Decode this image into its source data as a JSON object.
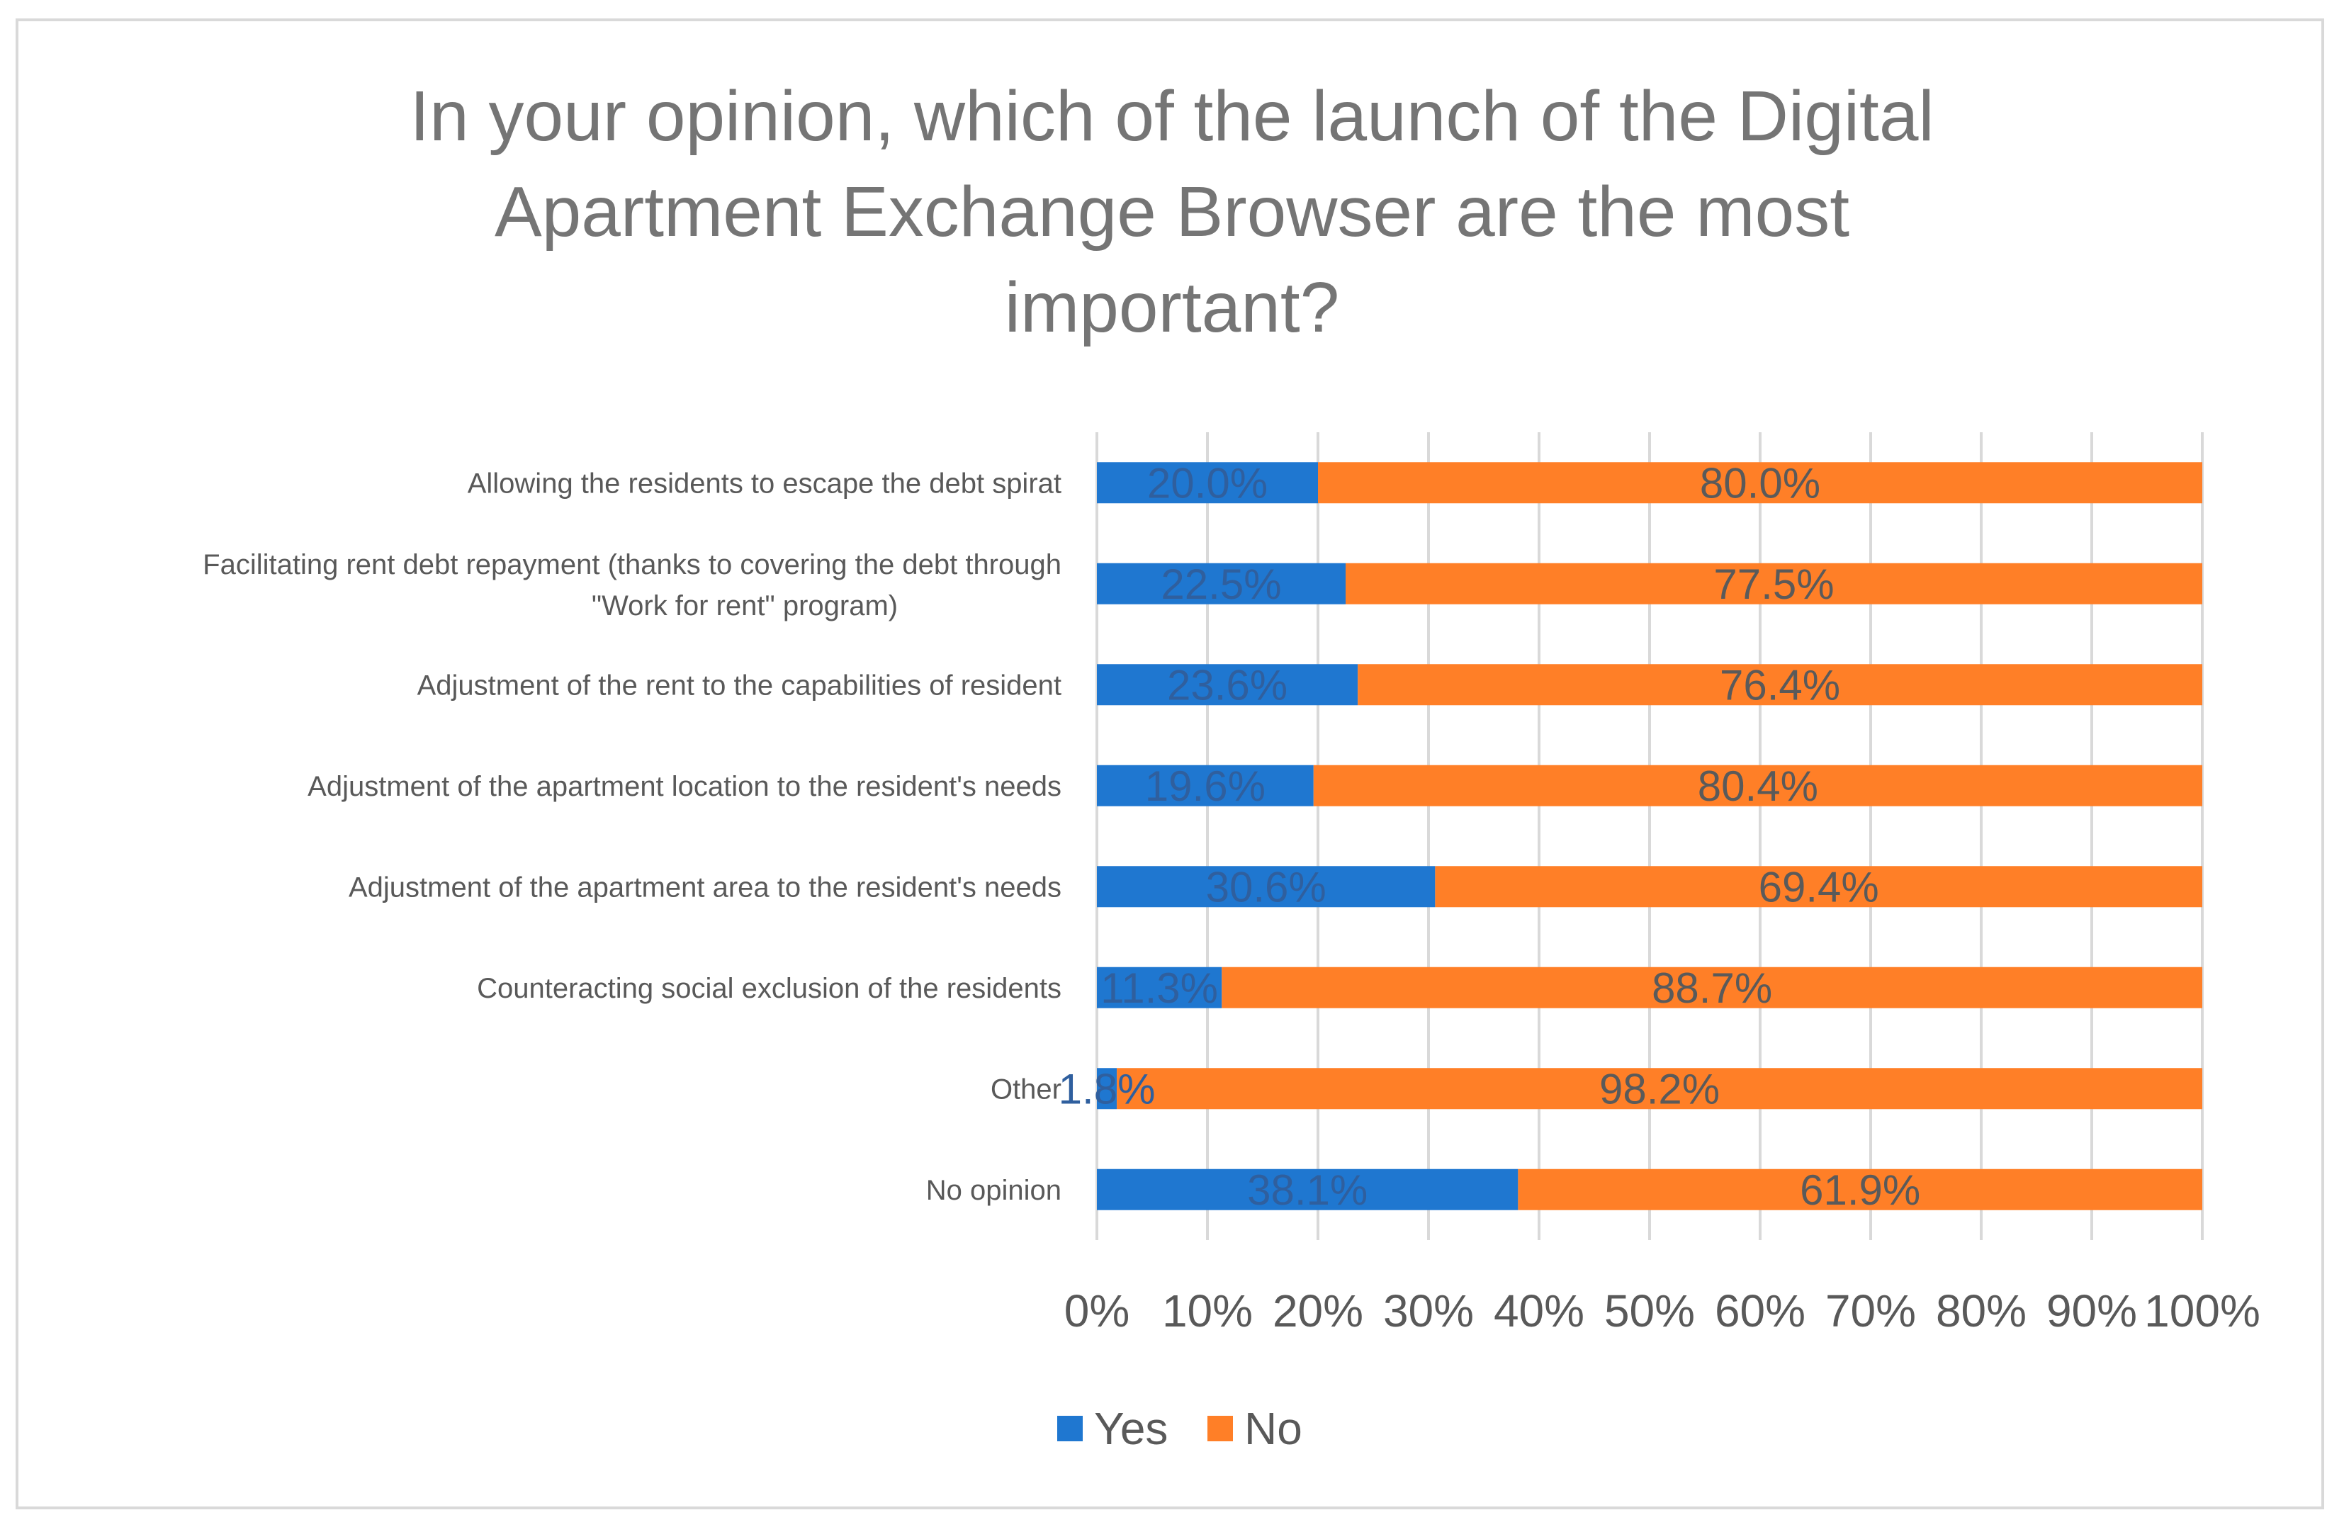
{
  "chart_data": {
    "type": "bar",
    "orientation": "horizontal",
    "stacked": "percent",
    "title": "In your opinion, which of the launch of the Digital Apartment Exchange Browser are the most important?",
    "title_lines": [
      "In your opinion, which of the launch of the Digital",
      "Apartment Exchange Browser are the most",
      "important?"
    ],
    "categories": [
      "Allowing the residents to escape the debt spirat",
      "Facilitating rent debt repayment (thanks to covering the debt through \"Work for rent\" program)",
      "Adjustment of the rent to the capabilities of resident",
      "Adjustment of the apartment location to the resident's needs",
      "Adjustment of the apartment area to the resident's needs",
      "Counteracting social exclusion of the residents",
      "Other",
      "No opinion"
    ],
    "category_label_lines": [
      [
        "Allowing the residents to escape the debt spirat"
      ],
      [
        "Facilitating rent debt repayment (thanks to covering the debt through",
        "\"Work for rent\" program)"
      ],
      [
        "Adjustment of the rent to the capabilities of resident"
      ],
      [
        "Adjustment of the apartment location to the resident's needs"
      ],
      [
        "Adjustment of the apartment area to the resident's needs"
      ],
      [
        "Counteracting social exclusion of the residents"
      ],
      [
        "Other"
      ],
      [
        "No opinion"
      ]
    ],
    "series": [
      {
        "name": "Yes",
        "color": "#1f77d0",
        "values": [
          20.0,
          22.5,
          23.6,
          19.6,
          30.6,
          11.3,
          1.8,
          38.1
        ],
        "labels": [
          "20.0%",
          "22.5%",
          "23.6%",
          "19.6%",
          "30.6%",
          "11.3%",
          "1.8%",
          "38.1%"
        ]
      },
      {
        "name": "No",
        "color": "#ff7f27",
        "values": [
          80.0,
          77.5,
          76.4,
          80.4,
          69.4,
          88.7,
          98.2,
          61.9
        ],
        "labels": [
          "80.0%",
          "77.5%",
          "76.4%",
          "80.4%",
          "69.4%",
          "88.7%",
          "98.2%",
          "61.9%"
        ]
      }
    ],
    "xlim": [
      0,
      100
    ],
    "x_ticks": [
      0,
      10,
      20,
      30,
      40,
      50,
      60,
      70,
      80,
      90,
      100
    ],
    "x_tick_labels": [
      "0%",
      "10%",
      "20%",
      "30%",
      "40%",
      "50%",
      "60%",
      "70%",
      "80%",
      "90%",
      "100%"
    ],
    "xlabel": "",
    "ylabel": "",
    "grid": "vertical",
    "legend": {
      "position": "bottom",
      "entries": [
        "Yes",
        "No"
      ]
    }
  }
}
